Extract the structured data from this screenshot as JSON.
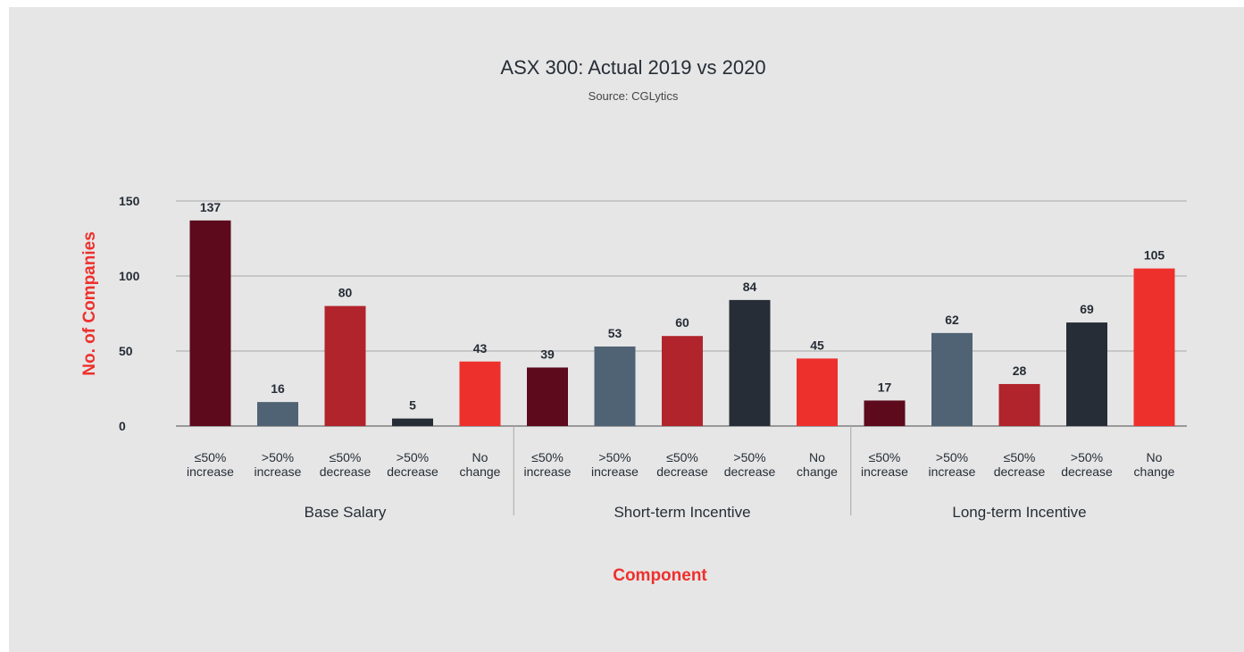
{
  "chart_data": {
    "type": "bar",
    "title": "ASX 300: Actual 2019 vs 2020",
    "subtitle": "Source: CGLytics",
    "xlabel": "Component",
    "ylabel": "No. of Companies",
    "ylim": [
      0,
      150
    ],
    "yticks": [
      0,
      50,
      100,
      150
    ],
    "grid": true,
    "groups": [
      {
        "name": "Base Salary",
        "categories": [
          "≤50% increase",
          ">50% increase",
          "≤50% decrease",
          ">50% decrease",
          "No change"
        ],
        "values": [
          137,
          16,
          80,
          5,
          43
        ]
      },
      {
        "name": "Short-term Incentive",
        "categories": [
          "≤50% increase",
          ">50% increase",
          "≤50% decrease",
          ">50% decrease",
          "No change"
        ],
        "values": [
          39,
          53,
          60,
          84,
          45
        ]
      },
      {
        "name": "Long-term Incentive",
        "categories": [
          "≤50% increase",
          ">50% increase",
          "≤50% decrease",
          ">50% decrease",
          "No change"
        ],
        "values": [
          17,
          62,
          28,
          69,
          105
        ]
      }
    ],
    "category_labels": [
      [
        "≤50%",
        "increase"
      ],
      [
        ">50%",
        "increase"
      ],
      [
        "≤50%",
        "decrease"
      ],
      [
        ">50%",
        "decrease"
      ],
      [
        "No",
        "change"
      ]
    ],
    "colors": [
      "#5c0a1c",
      "#506374",
      "#b1242c",
      "#262d36",
      "#ee302d"
    ],
    "accent_color": "#ee302d"
  }
}
